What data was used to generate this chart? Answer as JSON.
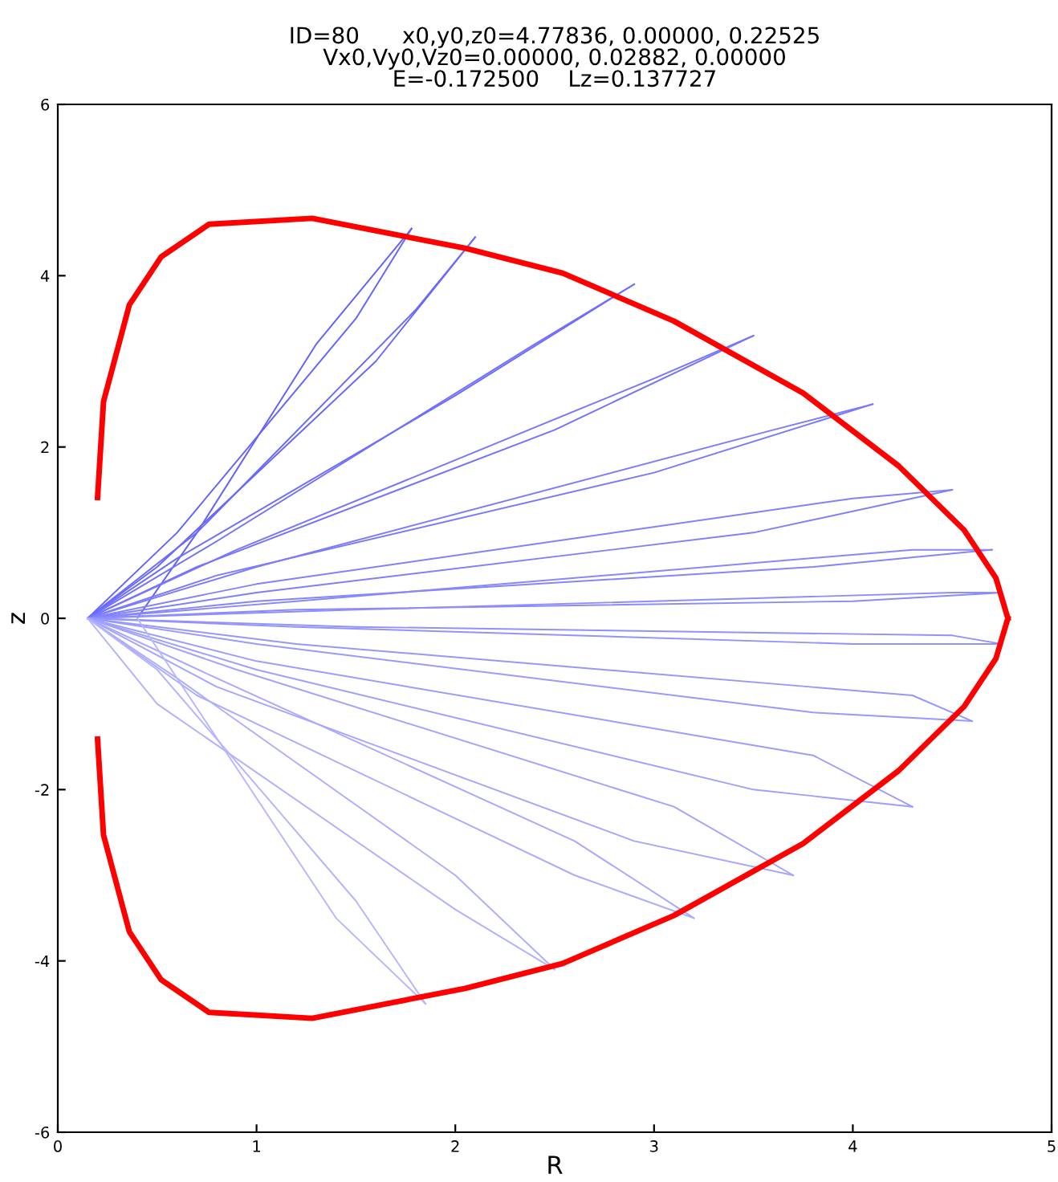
{
  "chart_data": {
    "type": "line",
    "title": "ID=80      x0,y0,z0=4.77836, 0.00000, 0.22525\nVx0,Vy0,Vz0=0.00000, 0.02882, 0.00000\nE=-0.172500    Lz=0.137727",
    "xlabel": "R",
    "ylabel": "z",
    "xlim": [
      0,
      5
    ],
    "ylim": [
      -6,
      6
    ],
    "xticks": [
      0,
      1,
      2,
      3,
      4,
      5
    ],
    "yticks": [
      -6,
      -4,
      -2,
      0,
      2,
      4,
      6
    ],
    "grid": false,
    "legend": false,
    "marker": "none",
    "line_style": "solid",
    "series": [
      {
        "color": "#6060ff",
        "x": [
          0.4,
          0.7,
          1.3,
          1.78
        ],
        "values": [
          0.0,
          1.0,
          3.2,
          4.55
        ]
      },
      {
        "color": "#6363ff",
        "x": [
          1.78,
          1.5,
          0.6,
          0.15
        ],
        "values": [
          4.55,
          3.5,
          1.0,
          0.0
        ]
      },
      {
        "color": "#6666ff",
        "x": [
          0.15,
          0.5,
          1.6,
          2.1
        ],
        "values": [
          0.0,
          0.6,
          3.0,
          4.45
        ]
      },
      {
        "color": "#6969ff",
        "x": [
          2.1,
          1.8,
          0.7,
          0.15
        ],
        "values": [
          4.45,
          3.6,
          1.0,
          0.0
        ]
      },
      {
        "color": "#6c6cff",
        "x": [
          0.15,
          0.6,
          2.0,
          2.9
        ],
        "values": [
          0.0,
          0.7,
          2.6,
          3.9
        ]
      },
      {
        "color": "#6f6fff",
        "x": [
          2.9,
          2.4,
          0.8,
          0.15
        ],
        "values": [
          3.9,
          3.2,
          0.9,
          0.0
        ]
      },
      {
        "color": "#7272ff",
        "x": [
          0.15,
          0.7,
          2.5,
          3.5
        ],
        "values": [
          0.0,
          0.6,
          2.2,
          3.3
        ]
      },
      {
        "color": "#7575ff",
        "x": [
          3.5,
          3.0,
          0.9,
          0.15
        ],
        "values": [
          3.3,
          2.8,
          0.8,
          0.0
        ]
      },
      {
        "color": "#7878ff",
        "x": [
          0.15,
          0.8,
          3.0,
          4.1
        ],
        "values": [
          0.0,
          0.5,
          1.7,
          2.5
        ]
      },
      {
        "color": "#7b7bff",
        "x": [
          4.1,
          3.6,
          1.0,
          0.15
        ],
        "values": [
          2.5,
          2.2,
          0.6,
          0.0
        ]
      },
      {
        "color": "#7e7eff",
        "x": [
          0.15,
          1.0,
          3.5,
          4.5
        ],
        "values": [
          0.0,
          0.3,
          1.0,
          1.5
        ]
      },
      {
        "color": "#8181ff",
        "x": [
          4.5,
          4.0,
          1.0,
          0.15
        ],
        "values": [
          1.5,
          1.4,
          0.4,
          0.0
        ]
      },
      {
        "color": "#8484ff",
        "x": [
          0.15,
          1.0,
          3.8,
          4.7
        ],
        "values": [
          0.0,
          0.2,
          0.6,
          0.8
        ]
      },
      {
        "color": "#8787ff",
        "x": [
          4.7,
          4.3,
          1.2,
          0.15
        ],
        "values": [
          0.8,
          0.8,
          0.2,
          0.0
        ]
      },
      {
        "color": "#8a8aff",
        "x": [
          0.15,
          1.2,
          4.0,
          4.75
        ],
        "values": [
          0.0,
          0.1,
          0.2,
          0.3
        ]
      },
      {
        "color": "#8d8dff",
        "x": [
          4.75,
          4.5,
          1.5,
          0.15
        ],
        "values": [
          0.3,
          0.3,
          0.1,
          0.0
        ]
      },
      {
        "color": "#9090ff",
        "x": [
          0.15,
          1.5,
          4.5,
          4.75
        ],
        "values": [
          0.0,
          -0.1,
          -0.2,
          -0.3
        ]
      },
      {
        "color": "#9393ff",
        "x": [
          4.75,
          4.0,
          1.2,
          0.15
        ],
        "values": [
          -0.3,
          -0.3,
          -0.1,
          0.0
        ]
      },
      {
        "color": "#9696ff",
        "x": [
          0.15,
          1.2,
          4.3,
          4.6
        ],
        "values": [
          0.0,
          -0.3,
          -0.9,
          -1.2
        ]
      },
      {
        "color": "#9999ff",
        "x": [
          4.6,
          3.8,
          1.0,
          0.15
        ],
        "values": [
          -1.2,
          -1.1,
          -0.3,
          0.0
        ]
      },
      {
        "color": "#9c9cff",
        "x": [
          0.15,
          1.0,
          3.8,
          4.3
        ],
        "values": [
          0.0,
          -0.5,
          -1.6,
          -2.2
        ]
      },
      {
        "color": "#9f9fff",
        "x": [
          4.3,
          3.5,
          1.0,
          0.15
        ],
        "values": [
          -2.2,
          -2.0,
          -0.6,
          0.0
        ]
      },
      {
        "color": "#a2a2ff",
        "x": [
          0.15,
          0.9,
          3.1,
          3.7
        ],
        "values": [
          0.0,
          -0.6,
          -2.2,
          -3.0
        ]
      },
      {
        "color": "#a5a5ff",
        "x": [
          3.7,
          2.9,
          0.8,
          0.15
        ],
        "values": [
          -3.0,
          -2.6,
          -0.8,
          0.0
        ]
      },
      {
        "color": "#a8a8ff",
        "x": [
          0.15,
          0.8,
          2.6,
          3.2
        ],
        "values": [
          0.0,
          -0.7,
          -2.6,
          -3.5
        ]
      },
      {
        "color": "#ababff",
        "x": [
          3.2,
          2.6,
          0.7,
          0.15
        ],
        "values": [
          -3.5,
          -3.0,
          -0.9,
          0.0
        ]
      },
      {
        "color": "#aeaeff",
        "x": [
          0.15,
          0.6,
          2.0,
          2.5
        ],
        "values": [
          0.0,
          -0.7,
          -3.0,
          -4.1
        ]
      },
      {
        "color": "#b1b1ff",
        "x": [
          2.5,
          2.0,
          0.5,
          0.15
        ],
        "values": [
          -4.1,
          -3.4,
          -1.0,
          0.0
        ]
      },
      {
        "color": "#b4b4ff",
        "x": [
          0.15,
          0.5,
          1.5,
          1.85
        ],
        "values": [
          0.0,
          -0.6,
          -3.3,
          -4.5
        ]
      },
      {
        "color": "#b7b7ff",
        "x": [
          1.85,
          1.4,
          0.4
        ],
        "values": [
          -4.5,
          -3.5,
          0.0
        ]
      },
      {
        "color": "#ff0000",
        "x": [
          0.2,
          0.23,
          0.36,
          0.52,
          0.76,
          1.28,
          2.05,
          2.54,
          3.1,
          3.75,
          4.23,
          4.56,
          4.72,
          4.78
        ],
        "values": [
          1.41,
          2.53,
          3.66,
          4.22,
          4.6,
          4.67,
          4.32,
          4.03,
          3.47,
          2.63,
          1.78,
          1.03,
          0.47,
          0.0
        ]
      },
      {
        "color": "#ff0000",
        "x": [
          0.2,
          0.23,
          0.36,
          0.52,
          0.76,
          1.28,
          2.05,
          2.54,
          3.1,
          3.75,
          4.23,
          4.56,
          4.72,
          4.78
        ],
        "values": [
          -1.41,
          -2.53,
          -3.66,
          -4.22,
          -4.6,
          -4.67,
          -4.32,
          -4.03,
          -3.47,
          -2.63,
          -1.78,
          -1.03,
          -0.47,
          0.0
        ]
      }
    ]
  }
}
